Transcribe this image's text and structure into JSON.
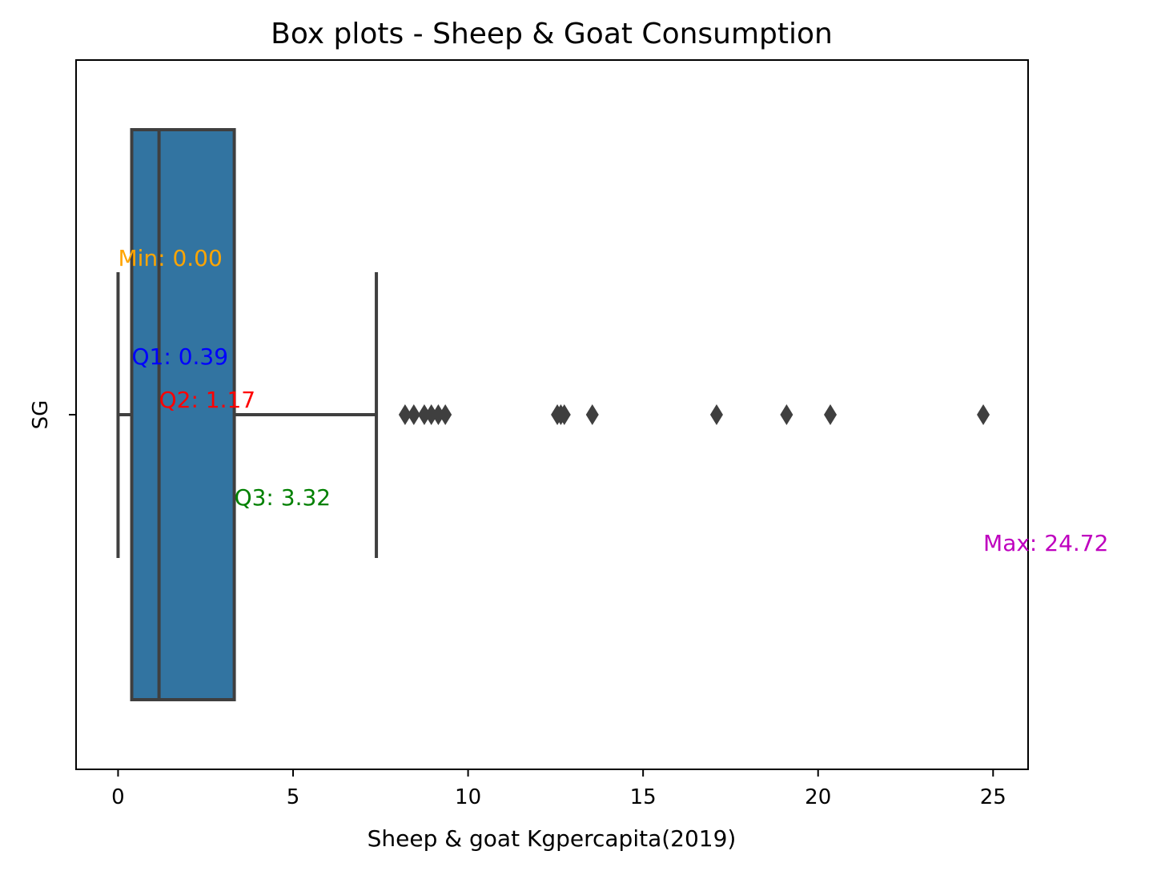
{
  "chart_data": {
    "type": "box",
    "title": "Box plots - Sheep & Goat Consumption",
    "xlabel": "Sheep & goat Kgpercapita(2019)",
    "ylabel": "",
    "category": "SG",
    "xlim": [
      -1.2,
      26.0
    ],
    "xticks": [
      0,
      5,
      10,
      15,
      20,
      25
    ],
    "grid": false,
    "box": {
      "whisker_low": 0.0,
      "q1": 0.39,
      "median": 1.17,
      "q3": 3.32,
      "whisker_high": 7.38,
      "fill": "#3274a1",
      "line": "#3f3f3f"
    },
    "outliers": [
      8.2,
      8.45,
      8.75,
      8.95,
      9.15,
      9.35,
      12.55,
      12.65,
      12.75,
      13.55,
      17.1,
      19.1,
      20.35,
      24.72
    ],
    "annotations": [
      {
        "id": "min",
        "text": "Min: 0.00",
        "x": 0.0,
        "color": "#ffa500"
      },
      {
        "id": "q1",
        "text": "Q1: 0.39",
        "x": 0.39,
        "color": "#0000ff"
      },
      {
        "id": "q2",
        "text": "Q2: 1.17",
        "x": 1.17,
        "color": "#ff0000"
      },
      {
        "id": "q3",
        "text": "Q3: 3.32",
        "x": 3.32,
        "color": "#008000"
      },
      {
        "id": "max",
        "text": "Max: 24.72",
        "x": 24.72,
        "color": "#bf00bf"
      }
    ]
  }
}
